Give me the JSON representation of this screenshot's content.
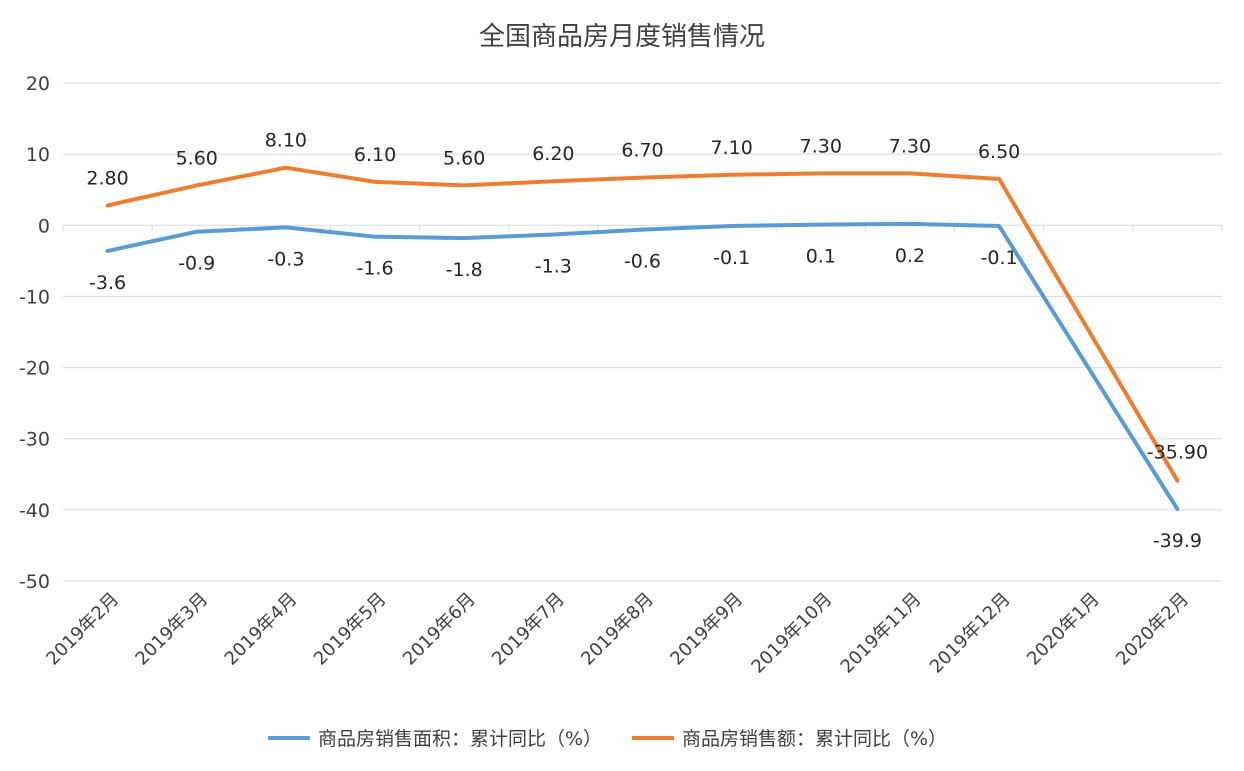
{
  "chart_data": {
    "type": "line",
    "title": "全国商品房月度销售情况",
    "categories": [
      "2019年2月",
      "2019年3月",
      "2019年4月",
      "2019年5月",
      "2019年6月",
      "2019年7月",
      "2019年8月",
      "2019年9月",
      "2019年10月",
      "2019年11月",
      "2019年12月",
      "2020年1月",
      "2020年2月"
    ],
    "ylim": [
      -50,
      20
    ],
    "yticks": [
      20,
      10,
      0,
      -10,
      -20,
      -30,
      -40,
      -50
    ],
    "grid": true,
    "legend_position": "bottom",
    "series": [
      {
        "name": "商品房销售面积：累计同比（%）",
        "color": "#5b9bd5",
        "values": [
          -3.6,
          -0.9,
          -0.3,
          -1.6,
          -1.8,
          -1.3,
          -0.6,
          -0.1,
          0.1,
          0.2,
          -0.1,
          null,
          -39.9
        ],
        "labels": [
          "-3.6",
          "-0.9",
          "-0.3",
          "-1.6",
          "-1.8",
          "-1.3",
          "-0.6",
          "-0.1",
          "0.1",
          "0.2",
          "-0.1",
          null,
          "-39.9"
        ]
      },
      {
        "name": "商品房销售额：累计同比（%）",
        "color": "#ed7d31",
        "values": [
          2.8,
          5.6,
          8.1,
          6.1,
          5.6,
          6.2,
          6.7,
          7.1,
          7.3,
          7.3,
          6.5,
          null,
          -35.9
        ],
        "labels": [
          "2.80",
          "5.60",
          "8.10",
          "6.10",
          "5.60",
          "6.20",
          "6.70",
          "7.10",
          "7.30",
          "7.30",
          "6.50",
          null,
          "-35.90"
        ]
      }
    ]
  }
}
